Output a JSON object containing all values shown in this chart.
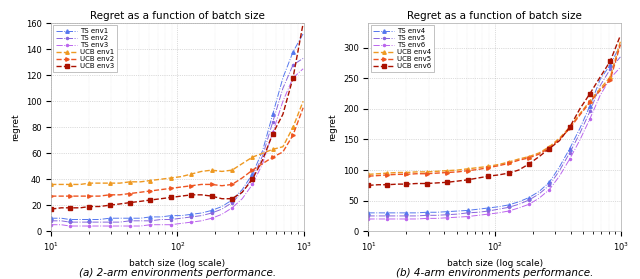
{
  "title": "Regret as a function of batch size",
  "xlabel": "batch size (log scale)",
  "ylabel": "regret",
  "fig_caption_left": "(a) 2-arm environments performance.",
  "fig_caption_right": "(b) 4-arm environments performance.",
  "x_min": 10,
  "x_max": 1000,
  "plot1": {
    "ylim": [
      0,
      160
    ],
    "yticks": [
      0,
      20,
      40,
      60,
      80,
      100,
      120,
      140,
      160
    ],
    "series": [
      {
        "label": "TS env1",
        "color": "#5577ee",
        "linestyle": "-.",
        "marker": "^",
        "markersize": 2.5,
        "linewidth": 0.7,
        "x": [
          10,
          12,
          14,
          17,
          20,
          24,
          29,
          35,
          42,
          51,
          61,
          74,
          89,
          107,
          129,
          155,
          187,
          225,
          271,
          326,
          393,
          473,
          569,
          685,
          824,
          991
        ],
        "y": [
          10,
          10,
          9,
          9,
          9,
          9,
          10,
          10,
          10,
          10,
          11,
          11,
          12,
          12,
          13,
          14,
          16,
          19,
          24,
          32,
          44,
          62,
          90,
          118,
          138,
          152
        ]
      },
      {
        "label": "TS env2",
        "color": "#8866dd",
        "linestyle": "-.",
        "marker": ".",
        "markersize": 3,
        "linewidth": 0.7,
        "x": [
          10,
          12,
          14,
          17,
          20,
          24,
          29,
          35,
          42,
          51,
          61,
          74,
          89,
          107,
          129,
          155,
          187,
          225,
          271,
          326,
          393,
          473,
          569,
          685,
          824,
          991
        ],
        "y": [
          8,
          8,
          7,
          7,
          7,
          7,
          7,
          7,
          8,
          8,
          8,
          9,
          9,
          10,
          11,
          12,
          14,
          17,
          22,
          30,
          41,
          58,
          84,
          110,
          128,
          133
        ]
      },
      {
        "label": "TS env3",
        "color": "#bb66ee",
        "linestyle": "-.",
        "marker": ".",
        "markersize": 3,
        "linewidth": 0.7,
        "x": [
          10,
          12,
          14,
          17,
          20,
          24,
          29,
          35,
          42,
          51,
          61,
          74,
          89,
          107,
          129,
          155,
          187,
          225,
          271,
          326,
          393,
          473,
          569,
          685,
          824,
          991
        ],
        "y": [
          5,
          5,
          4,
          4,
          4,
          4,
          4,
          4,
          4,
          4,
          5,
          5,
          5,
          6,
          7,
          8,
          10,
          13,
          18,
          25,
          36,
          52,
          76,
          100,
          118,
          125
        ]
      },
      {
        "label": "UCB env1",
        "color": "#ee9922",
        "linestyle": "--",
        "marker": "^",
        "markersize": 2.5,
        "linewidth": 1.0,
        "x": [
          10,
          12,
          14,
          17,
          20,
          24,
          29,
          35,
          42,
          51,
          61,
          74,
          89,
          107,
          129,
          155,
          187,
          225,
          271,
          326,
          393,
          473,
          569,
          685,
          824,
          991
        ],
        "y": [
          36,
          36,
          36,
          36,
          37,
          37,
          37,
          37,
          38,
          38,
          39,
          40,
          41,
          42,
          44,
          46,
          47,
          46,
          47,
          52,
          57,
          60,
          63,
          65,
          80,
          100
        ]
      },
      {
        "label": "UCB env2",
        "color": "#ee5522",
        "linestyle": "--",
        "marker": ">",
        "markersize": 2.5,
        "linewidth": 1.0,
        "x": [
          10,
          12,
          14,
          17,
          20,
          24,
          29,
          35,
          42,
          51,
          61,
          74,
          89,
          107,
          129,
          155,
          187,
          225,
          271,
          326,
          393,
          473,
          569,
          685,
          824,
          991
        ],
        "y": [
          27,
          27,
          27,
          27,
          27,
          27,
          28,
          28,
          29,
          30,
          31,
          32,
          33,
          34,
          35,
          36,
          36,
          35,
          36,
          41,
          47,
          52,
          57,
          61,
          74,
          95
        ]
      },
      {
        "label": "UCB env3",
        "color": "#aa1100",
        "linestyle": "--",
        "marker": "s",
        "markersize": 2.5,
        "linewidth": 1.0,
        "x": [
          10,
          12,
          14,
          17,
          20,
          24,
          29,
          35,
          42,
          51,
          61,
          74,
          89,
          107,
          129,
          155,
          187,
          225,
          271,
          326,
          393,
          473,
          569,
          685,
          824,
          991
        ],
        "y": [
          17,
          18,
          18,
          18,
          19,
          19,
          20,
          21,
          22,
          23,
          24,
          25,
          26,
          27,
          28,
          28,
          27,
          25,
          25,
          30,
          40,
          55,
          75,
          90,
          118,
          160
        ]
      }
    ]
  },
  "plot2": {
    "ylim": [
      0,
      340
    ],
    "yticks": [
      0,
      50,
      100,
      150,
      200,
      250,
      300
    ],
    "series": [
      {
        "label": "TS env4",
        "color": "#5577ee",
        "linestyle": "-.",
        "marker": "^",
        "markersize": 2.5,
        "linewidth": 0.7,
        "x": [
          10,
          12,
          14,
          17,
          20,
          24,
          29,
          35,
          42,
          51,
          61,
          74,
          89,
          107,
          129,
          155,
          187,
          225,
          271,
          326,
          393,
          473,
          569,
          685,
          824,
          991
        ],
        "y": [
          30,
          30,
          30,
          30,
          30,
          30,
          31,
          31,
          32,
          33,
          34,
          36,
          38,
          40,
          43,
          48,
          55,
          65,
          80,
          105,
          135,
          168,
          205,
          248,
          272,
          305
        ]
      },
      {
        "label": "TS env5",
        "color": "#8866dd",
        "linestyle": "-.",
        "marker": ".",
        "markersize": 3,
        "linewidth": 0.7,
        "x": [
          10,
          12,
          14,
          17,
          20,
          24,
          29,
          35,
          42,
          51,
          61,
          74,
          89,
          107,
          129,
          155,
          187,
          225,
          271,
          326,
          393,
          473,
          569,
          685,
          824,
          991
        ],
        "y": [
          25,
          25,
          25,
          25,
          25,
          25,
          26,
          26,
          27,
          28,
          30,
          31,
          33,
          36,
          39,
          44,
          51,
          61,
          75,
          99,
          128,
          160,
          196,
          238,
          265,
          285
        ]
      },
      {
        "label": "TS env6",
        "color": "#bb66ee",
        "linestyle": "-.",
        "marker": ".",
        "markersize": 3,
        "linewidth": 0.7,
        "x": [
          10,
          12,
          14,
          17,
          20,
          24,
          29,
          35,
          42,
          51,
          61,
          74,
          89,
          107,
          129,
          155,
          187,
          225,
          271,
          326,
          393,
          473,
          569,
          685,
          824,
          991
        ],
        "y": [
          20,
          20,
          20,
          20,
          20,
          20,
          21,
          21,
          22,
          23,
          24,
          26,
          28,
          30,
          33,
          38,
          44,
          54,
          68,
          90,
          118,
          149,
          184,
          222,
          250,
          268
        ]
      },
      {
        "label": "UCB env4",
        "color": "#ee9922",
        "linestyle": "--",
        "marker": "^",
        "markersize": 2.5,
        "linewidth": 1.0,
        "x": [
          10,
          12,
          14,
          17,
          20,
          24,
          29,
          35,
          42,
          51,
          61,
          74,
          89,
          107,
          129,
          155,
          187,
          225,
          271,
          326,
          393,
          473,
          569,
          685,
          824,
          991
        ],
        "y": [
          93,
          94,
          95,
          96,
          96,
          97,
          97,
          98,
          99,
          100,
          102,
          104,
          106,
          109,
          113,
          118,
          122,
          128,
          138,
          152,
          170,
          192,
          213,
          233,
          252,
          310
        ]
      },
      {
        "label": "UCB env5",
        "color": "#ee5522",
        "linestyle": "--",
        "marker": ">",
        "markersize": 2.5,
        "linewidth": 1.0,
        "x": [
          10,
          12,
          14,
          17,
          20,
          24,
          29,
          35,
          42,
          51,
          61,
          74,
          89,
          107,
          129,
          155,
          187,
          225,
          271,
          326,
          393,
          473,
          569,
          685,
          824,
          991
        ],
        "y": [
          90,
          91,
          92,
          93,
          93,
          94,
          94,
          95,
          96,
          97,
          99,
          101,
          104,
          107,
          111,
          116,
          120,
          126,
          136,
          150,
          168,
          190,
          211,
          230,
          248,
          305
        ]
      },
      {
        "label": "UCB env6",
        "color": "#aa1100",
        "linestyle": "--",
        "marker": "s",
        "markersize": 2.5,
        "linewidth": 1.0,
        "x": [
          10,
          12,
          14,
          17,
          20,
          24,
          29,
          35,
          42,
          51,
          61,
          74,
          89,
          107,
          129,
          155,
          187,
          225,
          271,
          326,
          393,
          473,
          569,
          685,
          824,
          991
        ],
        "y": [
          75,
          76,
          76,
          77,
          77,
          78,
          78,
          79,
          80,
          82,
          84,
          87,
          90,
          92,
          95,
          100,
          110,
          122,
          135,
          148,
          170,
          200,
          225,
          252,
          278,
          320
        ]
      }
    ]
  }
}
